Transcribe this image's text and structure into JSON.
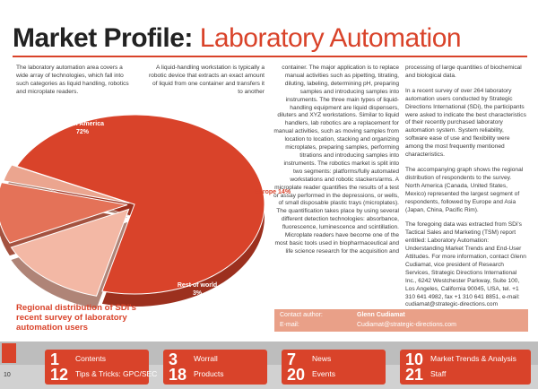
{
  "header": {
    "title_main": "Market Profile:",
    "title_accent": "Laboratory Automation"
  },
  "body": {
    "col1": "The laboratory automation area covers a wide array of technologies, which fall into such categories as liquid handling, robotics and microplate readers.",
    "col2": "A liquid-handling workstation is typically a robotic device that extracts an exact amount of liquid from one container and transfers it to another",
    "col3": "container. The major application is to replace manual activities such as pipetting, titrating, diluting, labeling, determining pH, preparing samples and introducing samples into instruments. The three main types of liquid-handling equipment are liquid dispensers, diluters and XYZ workstations. Similar to liquid handlers, lab robotics are a replacement for manual activities, such as moving samples from location to location, stacking and organizing microplates, preparing samples, performing titrations and introducing samples into instruments. The robotics market is split into two segments: platforms/fully automated workstations and robotic stackers/arms. A microplate reader quantifies the results of a test or assay performed in the depressions, or wells, of small disposable plastic trays (microplates). The quantification takes place by using several different detection technologies: absorbance, fluorescence, luminescence and scintillation. Microplate readers have become one of the most basic tools used in biopharmaceutical and life science research for the acquisition and",
    "col4_p1": "processing of large quantities of biochemical and biological data.",
    "col4_p2": "In a recent survey of over 264 laboratory automation users conducted by Strategic Directions International (SDi), the participants were asked to indicate the best characteristics of their recently purchased laboratory automation system. System reliability, software ease of use and flexibility were among the most frequently mentioned characteristics.",
    "col4_p3": "The accompanying graph shows the regional distribution of respondents to the survey. North America (Canada, United States, Mexico) represented the largest segment of respondents, followed by Europe and Asia (Japan, China, Pacific Rim).",
    "col4_p4": "The foregoing data was extracted from SDi's Tactical Sales and Marketing (TSM) report entitled: Laboratory Automation: Understanding Market Trends and End-User Attitudes. For more information, contact Glenn Cudiamat, vice president of Research Services, Strategic Directions International Inc., 6242 Westchester Parkway, Suite 100, Los Angeles, California 90045, USA, tel. +1 310 641 4982, fax +1 310 641 8851, e-mail: cudiamat@strategic-directions.com"
  },
  "chart_data": {
    "type": "pie",
    "title": "Regional distribution of SDi's recent survey of laboratory automation users",
    "categories": [
      "North America",
      "Europe",
      "Asia",
      "Rest of world"
    ],
    "values": [
      72,
      14,
      11,
      3
    ],
    "labels": [
      "72%",
      "14%",
      "11%",
      "3%"
    ]
  },
  "contact": {
    "author_label": "Contact author:",
    "author_value": "Glenn Cudiamat",
    "email_label": "E-mail:",
    "email_value": "Cudiamat@strategic-directions.com"
  },
  "footer": {
    "page_number": "10",
    "nav": [
      {
        "num": "1",
        "label": "Contents"
      },
      {
        "num": "3",
        "label": "Worrall"
      },
      {
        "num": "7",
        "label": "News"
      },
      {
        "num": "10",
        "label": "Market Trends & Analysis"
      },
      {
        "num": "12",
        "label": "Tips & Tricks: GPC/SEC"
      },
      {
        "num": "18",
        "label": "Products"
      },
      {
        "num": "20",
        "label": "Events"
      },
      {
        "num": "21",
        "label": "Staff"
      }
    ]
  },
  "colors": {
    "accent": "#d9432a",
    "slice_na": "#d9432a",
    "slice_eu": "#f3b8a5",
    "slice_asia": "#e47258",
    "slice_row": "#eba58f"
  }
}
